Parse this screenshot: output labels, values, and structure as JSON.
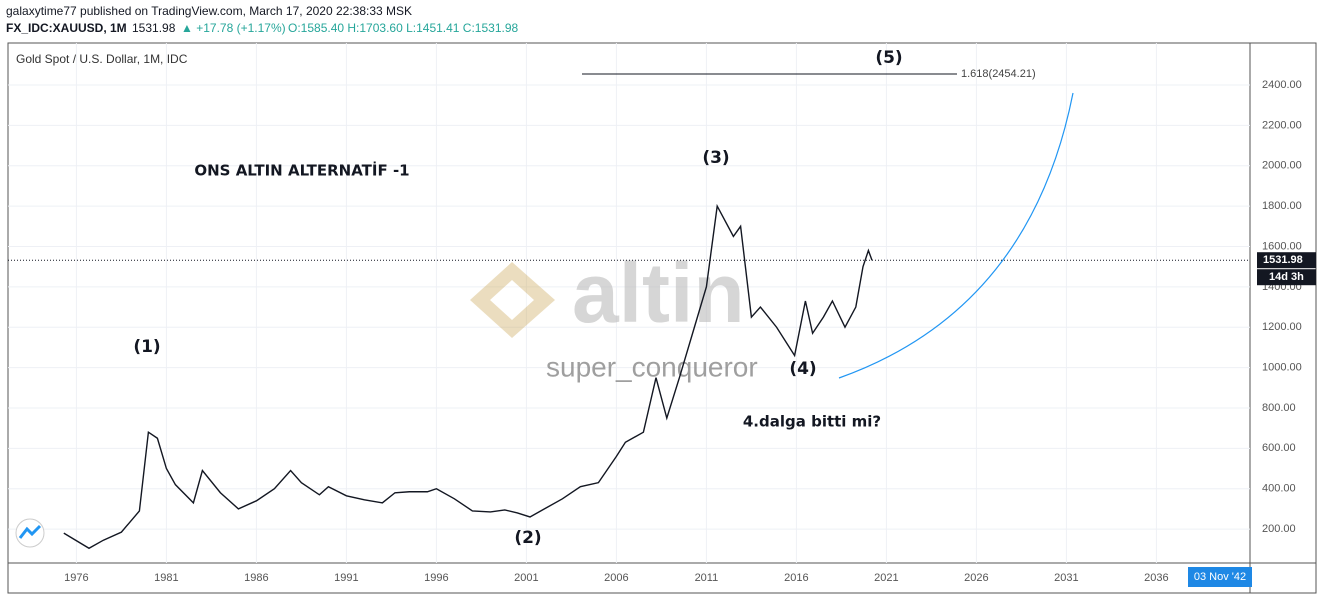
{
  "header": {
    "line1": "galaxytime77 published on TradingView.com, March 17, 2020 22:38:33 MSK",
    "symbol": "FX_IDC:XAUUSD, 1M",
    "price": "1531.98",
    "change": "▲ +17.78 (+1.17%)",
    "ohlc": "O:1585.40 H:1703.60 L:1451.41 C:1531.98"
  },
  "chart_data": {
    "type": "line",
    "title": "Gold Spot / U.S. Dollar, 1M, IDC",
    "x": [
      1975.3,
      1976.7,
      1977.5,
      1978.5,
      1979.5,
      1980.0,
      1980.5,
      1981.0,
      1981.5,
      1982.5,
      1983.0,
      1984.0,
      1985.0,
      1986.0,
      1987.0,
      1987.9,
      1988.5,
      1989.5,
      1990.0,
      1991.0,
      1992.0,
      1993.0,
      1993.7,
      1994.5,
      1995.5,
      1996.0,
      1997.0,
      1998.0,
      1999.0,
      1999.8,
      2000.5,
      2001.2,
      2002.0,
      2003.0,
      2004.0,
      2005.0,
      2006.0,
      2006.5,
      2007.5,
      2008.2,
      2008.8,
      2009.5,
      2010.5,
      2011.0,
      2011.6,
      2012.5,
      2012.9,
      2013.5,
      2014.0,
      2014.9,
      2015.9,
      2016.5,
      2016.9,
      2017.5,
      2018.0,
      2018.7,
      2019.3,
      2019.7,
      2020.0,
      2020.2
    ],
    "series": [
      {
        "name": "XAUUSD",
        "color": "#131722",
        "values": [
          180,
          105,
          145,
          185,
          290,
          680,
          650,
          500,
          420,
          330,
          490,
          380,
          300,
          340,
          400,
          490,
          430,
          370,
          410,
          365,
          345,
          330,
          380,
          385,
          385,
          400,
          350,
          290,
          285,
          295,
          280,
          260,
          300,
          350,
          410,
          430,
          560,
          630,
          680,
          950,
          750,
          950,
          1250,
          1400,
          1800,
          1650,
          1700,
          1250,
          1300,
          1200,
          1060,
          1330,
          1170,
          1250,
          1330,
          1200,
          1300,
          1500,
          1580,
          1531.98
        ]
      }
    ],
    "xlim": [
      1972.2,
      2041.2
    ],
    "xticks": [
      1976,
      1981,
      1986,
      1991,
      1996,
      2001,
      2006,
      2011,
      2016,
      2021,
      2026,
      2031,
      2036
    ],
    "ylim": [
      32,
      2608
    ],
    "yticks": [
      {
        "value": 200,
        "label": "200.00"
      },
      {
        "value": 400,
        "label": "400.00"
      },
      {
        "value": 600,
        "label": "600.00"
      },
      {
        "value": 800,
        "label": "800.00"
      },
      {
        "value": 1000,
        "label": "1000.00"
      },
      {
        "value": 1200,
        "label": "1200.00"
      },
      {
        "value": 1400,
        "label": "1400.00"
      },
      {
        "value": 1600,
        "label": "1600.00"
      },
      {
        "value": 1800,
        "label": "1800.00"
      },
      {
        "value": 2000,
        "label": "2000.00"
      },
      {
        "value": 2200,
        "label": "2200.00"
      },
      {
        "value": 2400,
        "label": "2400.00"
      }
    ],
    "grid": true,
    "last_price": 1531.98,
    "countdown": "14d 3h",
    "cursor_date": "03 Nov '42",
    "fib_level": {
      "value": 2454.21,
      "label": "1.618(2454.21)"
    },
    "annotations": [
      "(1)",
      "(2)",
      "(3)",
      "(4)",
      "(5)",
      "ONS ALTIN ALTERNATİF -1",
      "4.dalga bitti mi?"
    ],
    "watermark": [
      "altin",
      "super_conqueror"
    ]
  }
}
